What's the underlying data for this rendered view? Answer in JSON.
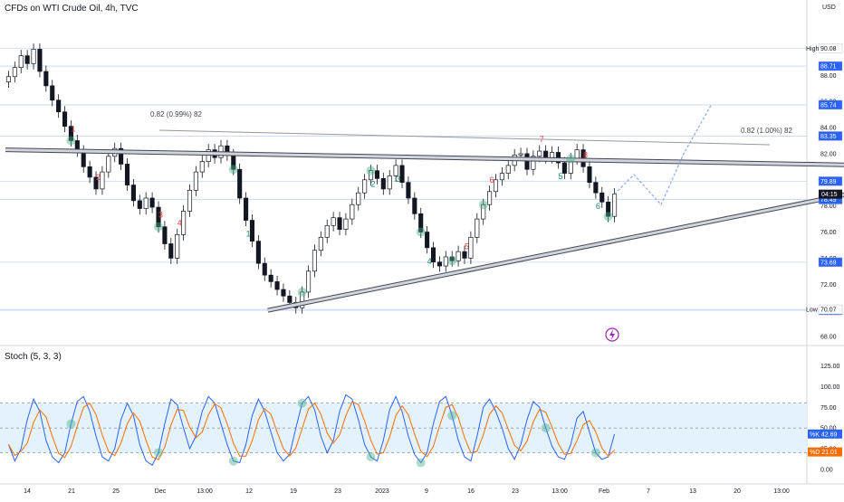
{
  "header": {
    "symbol_title": "CFDs on WTI Crude Oil, 4h, TVC",
    "currency": "USD"
  },
  "colors": {
    "up": "#131722",
    "down": "#131722",
    "k_line": "#2962ff",
    "d_line": "#ff6d00",
    "trend": "#5d606b",
    "wave_red": "#e53935",
    "wave_green": "#1b8a6b",
    "pivot_circle": "#4caf8a",
    "band_fill": "#e3f2fd",
    "projection": "#90a8f0",
    "lightning": "#9c27b0"
  },
  "price_axis": {
    "ticks": [
      "90.08",
      "88.00",
      "86.00",
      "84.00",
      "82.00",
      "80.00",
      "78.00",
      "76.00",
      "74.00",
      "72.00",
      "70.00",
      "68.00"
    ],
    "badges": [
      {
        "label": "High",
        "value": "90.08"
      },
      {
        "label": "",
        "value": "88.71"
      },
      {
        "label": "",
        "value": "85.74"
      },
      {
        "label": "",
        "value": "83.35"
      },
      {
        "label": "",
        "value": "79.89"
      },
      {
        "label": "",
        "value": "78.49"
      },
      {
        "label": "",
        "value": "73.69"
      },
      {
        "label": "",
        "value": "70.?"
      },
      {
        "label": "Low",
        "value": "70.07"
      }
    ],
    "current_price": "04:15"
  },
  "time_axis": {
    "labels": [
      "14",
      "21",
      "25",
      "Dec",
      "13:00",
      "12",
      "19",
      "23",
      "2023",
      "9",
      "16",
      "23",
      "13:00",
      "Feb",
      "7",
      "13",
      "20",
      "13:00"
    ]
  },
  "annotations": {
    "fib_left": "0.82 (0.99%) 82",
    "fib_right": "0.82 (1.00%) 82",
    "lightning_icon": "lightning-icon"
  },
  "waves": {
    "red_labels": [
      "1",
      "2",
      "3",
      "4",
      "5",
      "6",
      "7",
      "8"
    ],
    "green_labels": [
      "1",
      "2",
      "3",
      "4",
      "5",
      "6"
    ]
  },
  "stoch": {
    "title": "Stoch (5, 3, 3)",
    "ticks": [
      "125.00",
      "100.00",
      "75.00",
      "50.00",
      "25.00",
      "0.00"
    ],
    "k_label": "%K",
    "k_value": "42.69",
    "d_label": "%D",
    "d_value": "21.01"
  },
  "chart_data": {
    "type": "candlestick",
    "title": "CFDs on WTI Crude Oil, 4h, TVC",
    "series_close": [
      87.9,
      88.6,
      89.5,
      88.9,
      90.0,
      88.3,
      87.2,
      86.1,
      85.2,
      84.1,
      83.0,
      82.2,
      81.0,
      80.2,
      79.3,
      80.6,
      81.8,
      82.4,
      81.2,
      79.6,
      78.4,
      77.8,
      78.6,
      77.9,
      76.4,
      75.1,
      74.0,
      75.8,
      77.6,
      79.2,
      80.6,
      81.4,
      82.3,
      81.7,
      82.6,
      81.9,
      80.8,
      78.6,
      76.9,
      75.3,
      73.6,
      72.7,
      72.2,
      71.6,
      71.1,
      70.6,
      70.2,
      71.4,
      73.0,
      74.6,
      75.6,
      76.5,
      77.1,
      76.2,
      77.0,
      78.1,
      79.0,
      80.0,
      80.7,
      80.1,
      79.3,
      80.3,
      81.1,
      79.8,
      78.6,
      77.4,
      76.0,
      74.8,
      73.7,
      73.4,
      74.1,
      73.8,
      74.5,
      74.0,
      75.6,
      77.0,
      78.1,
      79.1,
      80.0,
      80.5,
      81.1,
      81.9,
      82.0,
      80.8,
      81.8,
      82.2,
      81.7,
      82.1,
      81.3,
      80.5,
      81.6,
      82.3,
      81.0,
      79.8,
      79.0,
      78.3,
      77.2,
      78.9
    ],
    "stoch_k": [
      30,
      10,
      25,
      60,
      85,
      70,
      35,
      15,
      8,
      20,
      55,
      82,
      88,
      70,
      40,
      15,
      10,
      25,
      60,
      80,
      65,
      30,
      10,
      5,
      20,
      55,
      85,
      78,
      50,
      25,
      40,
      70,
      88,
      80,
      55,
      30,
      10,
      8,
      30,
      65,
      85,
      70,
      45,
      20,
      10,
      18,
      50,
      80,
      88,
      72,
      40,
      20,
      35,
      70,
      90,
      85,
      60,
      30,
      15,
      10,
      35,
      72,
      88,
      70,
      40,
      18,
      8,
      20,
      55,
      82,
      88,
      65,
      35,
      15,
      10,
      40,
      75,
      85,
      70,
      50,
      25,
      12,
      30,
      60,
      82,
      75,
      50,
      28,
      15,
      12,
      30,
      62,
      70,
      45,
      20,
      12,
      15,
      42.69
    ],
    "ylim": [
      68.0,
      91.0
    ],
    "stoch_ylim": [
      -10,
      130
    ],
    "trendlines": [
      {
        "name": "upper",
        "from": [
          0,
          82.3
        ],
        "to": [
          140,
          81.1
        ]
      },
      {
        "name": "lower",
        "from": [
          42,
          70.0
        ],
        "to": [
          140,
          79.4
        ]
      }
    ]
  }
}
